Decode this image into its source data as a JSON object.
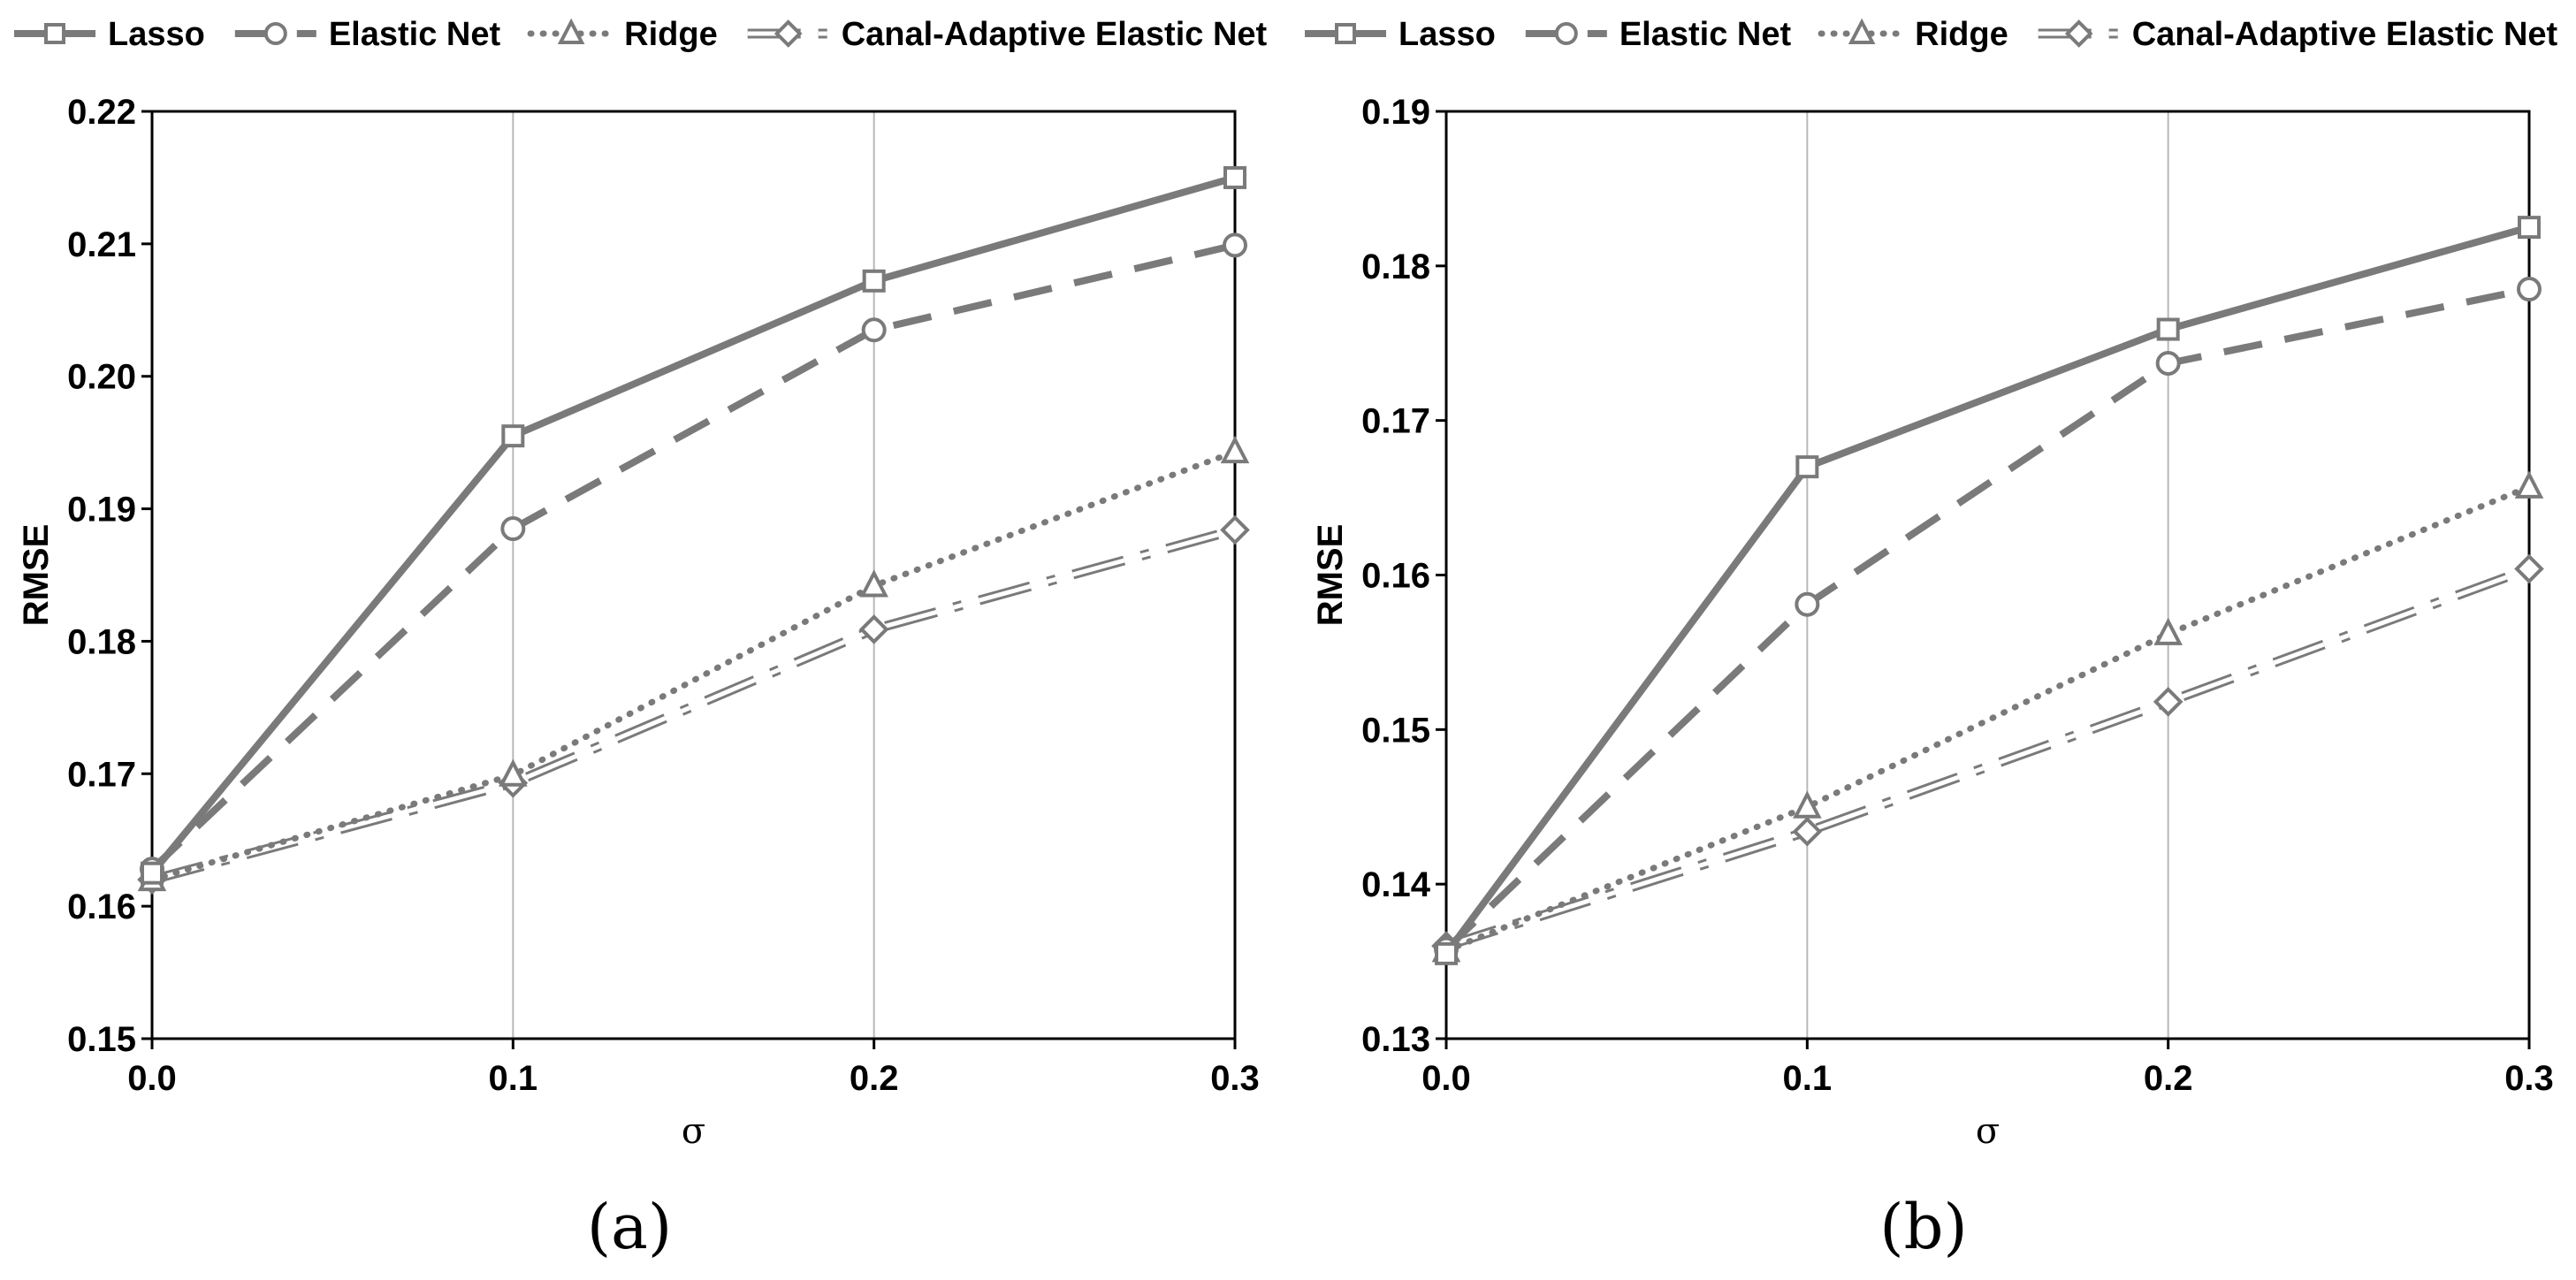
{
  "legend": {
    "entries": [
      "Lasso",
      "Elastic Net",
      "Ridge",
      "Canal-Adaptive Elastic Net"
    ]
  },
  "series_style": [
    {
      "name": "Lasso",
      "marker": "square-marker",
      "line": "solid",
      "color": "#7a7a7a"
    },
    {
      "name": "Elastic Net",
      "marker": "circle-marker",
      "line": "dashed",
      "color": "#7a7a7a"
    },
    {
      "name": "Ridge",
      "marker": "triangle-marker",
      "line": "dotted",
      "color": "#7a7a7a"
    },
    {
      "name": "Canal-Adaptive Elastic Net",
      "marker": "diamond-marker",
      "line": "double-dash-dot",
      "color": "#7a7a7a"
    }
  ],
  "chart_data": [
    {
      "type": "line",
      "panel_label": "(a)",
      "xlabel": "σ",
      "ylabel": "RMSE",
      "x": [
        0.0,
        0.1,
        0.2,
        0.3
      ],
      "x_tick_labels": [
        "0.0",
        "0.1",
        "0.2",
        "0.3"
      ],
      "ylim": [
        0.15,
        0.22
      ],
      "y_tick_labels": [
        "0.15",
        "0.16",
        "0.17",
        "0.18",
        "0.19",
        "0.20",
        "0.21",
        "0.22"
      ],
      "grid": "vertical",
      "series": [
        {
          "name": "Lasso",
          "values": [
            0.1625,
            0.1955,
            0.2072,
            0.215
          ]
        },
        {
          "name": "Elastic Net",
          "values": [
            0.1628,
            0.1885,
            0.2035,
            0.2099
          ]
        },
        {
          "name": "Ridge",
          "values": [
            0.162,
            0.1699,
            0.1842,
            0.1943
          ]
        },
        {
          "name": "Canal-Adaptive Elastic Net",
          "values": [
            0.162,
            0.1693,
            0.1809,
            0.1884
          ]
        }
      ]
    },
    {
      "type": "line",
      "panel_label": "(b)",
      "xlabel": "σ",
      "ylabel": "RMSE",
      "x": [
        0.0,
        0.1,
        0.2,
        0.3
      ],
      "x_tick_labels": [
        "0.0",
        "0.1",
        "0.2",
        "0.3"
      ],
      "ylim": [
        0.13,
        0.19
      ],
      "y_tick_labels": [
        "0.13",
        "0.14",
        "0.15",
        "0.16",
        "0.17",
        "0.18",
        "0.19"
      ],
      "grid": "vertical",
      "series": [
        {
          "name": "Lasso",
          "values": [
            0.1355,
            0.167,
            0.1759,
            0.1825
          ]
        },
        {
          "name": "Elastic Net",
          "values": [
            0.1358,
            0.1581,
            0.1737,
            0.1785
          ]
        },
        {
          "name": "Ridge",
          "values": [
            0.1357,
            0.145,
            0.1562,
            0.1657
          ]
        },
        {
          "name": "Canal-Adaptive Elastic Net",
          "values": [
            0.136,
            0.1434,
            0.1518,
            0.1604
          ]
        }
      ]
    }
  ]
}
